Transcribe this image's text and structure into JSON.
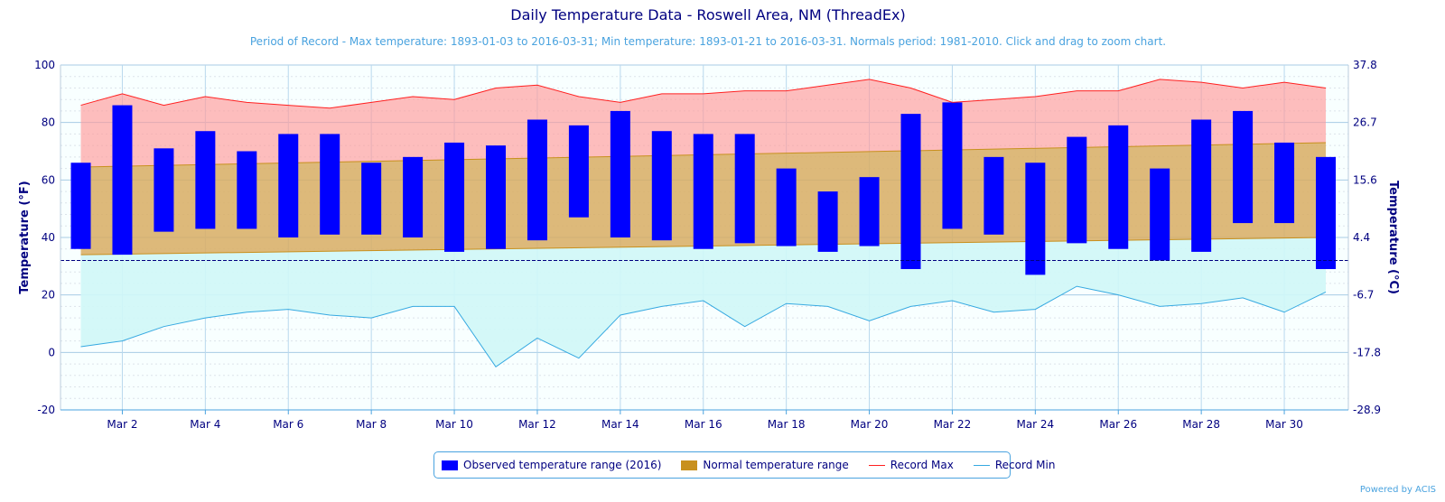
{
  "chart_data": {
    "type": "bar",
    "title": "Daily Temperature Data - Roswell Area, NM (ThreadEx)",
    "subtitle": "Period of Record - Max temperature: 1893-01-03 to 2016-03-31; Min temperature: 1893-01-21 to 2016-03-31. Normals period: 1981-2010. Click and drag to zoom chart.",
    "ylabel": "Temperature (°F)",
    "ylabel_right": "Temperature (°C)",
    "ylim": [
      -20,
      100
    ],
    "y_ticks": [
      -20,
      0,
      20,
      40,
      60,
      80,
      100
    ],
    "y_ticks_right": [
      "-28.9",
      "-17.8",
      "-6.7",
      "4.4",
      "15.6",
      "26.7",
      "37.8"
    ],
    "freezing_line": 32,
    "grid": true,
    "legend_position": "bottom",
    "days": [
      1,
      2,
      3,
      4,
      5,
      6,
      7,
      8,
      9,
      10,
      11,
      12,
      13,
      14,
      15,
      16,
      17,
      18,
      19,
      20,
      21,
      22,
      23,
      24,
      25,
      26,
      27,
      28,
      29,
      30,
      31
    ],
    "x_tick_labels": [
      "Mar 2",
      "Mar 4",
      "Mar 6",
      "Mar 8",
      "Mar 10",
      "Mar 12",
      "Mar 14",
      "Mar 16",
      "Mar 18",
      "Mar 20",
      "Mar 22",
      "Mar 24",
      "Mar 26",
      "Mar 28",
      "Mar 30"
    ],
    "x_tick_days": [
      2,
      4,
      6,
      8,
      10,
      12,
      14,
      16,
      18,
      20,
      22,
      24,
      26,
      28,
      30
    ],
    "series": [
      {
        "name": "Observed temperature range (2016)",
        "color": "#0000ff",
        "low": [
          36,
          34,
          42,
          43,
          43,
          40,
          41,
          41,
          40,
          35,
          36,
          39,
          47,
          40,
          39,
          36,
          38,
          37,
          35,
          37,
          29,
          43,
          41,
          27,
          38,
          36,
          32,
          35,
          45,
          45,
          29
        ],
        "high": [
          66,
          86,
          71,
          77,
          70,
          76,
          76,
          66,
          68,
          73,
          72,
          81,
          79,
          84,
          77,
          76,
          76,
          64,
          56,
          61,
          83,
          87,
          68,
          66,
          75,
          79,
          64,
          81,
          84,
          73,
          68
        ]
      },
      {
        "name": "Normal temperature range",
        "color": "#c8901e",
        "low_start": 34,
        "low_end": 40,
        "high_start": 64.5,
        "high_end": 73
      },
      {
        "name": "Record Max",
        "color": "#ff2020",
        "values": [
          86,
          90,
          86,
          89,
          87,
          86,
          85,
          87,
          89,
          88,
          92,
          93,
          89,
          87,
          90,
          90,
          91,
          91,
          93,
          95,
          92,
          87,
          88,
          89,
          91,
          91,
          95,
          94,
          92,
          94,
          92
        ]
      },
      {
        "name": "Record Min",
        "color": "#36a9e1",
        "values": [
          2,
          4,
          9,
          12,
          14,
          15,
          13,
          12,
          16,
          16,
          -5,
          5,
          -2,
          13,
          16,
          18,
          9,
          17,
          16,
          11,
          16,
          18,
          14,
          15,
          23,
          20,
          16,
          17,
          19,
          14,
          21
        ]
      }
    ]
  },
  "credit": "Powered by ACIS"
}
